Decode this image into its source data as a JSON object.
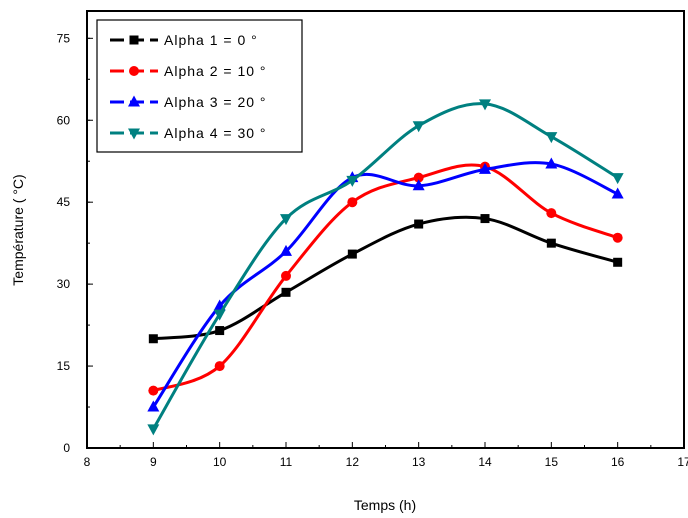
{
  "chart_data": {
    "type": "line",
    "title": "",
    "xlabel": "Temps (h)",
    "ylabel": "Température ( °C)",
    "xlim": [
      8,
      17
    ],
    "ylim": [
      0,
      80
    ],
    "x_ticks": [
      8,
      9,
      10,
      11,
      12,
      13,
      14,
      15,
      16,
      17
    ],
    "y_ticks": [
      0,
      15,
      30,
      45,
      60,
      75
    ],
    "x": [
      9,
      10,
      11,
      12,
      13,
      14,
      15,
      16
    ],
    "legend_position": "top-left",
    "series": [
      {
        "name": "Alpha 1 = 0 °",
        "color": "#000000",
        "marker": "square",
        "values": [
          20,
          21.5,
          28.5,
          35.5,
          41,
          42,
          37.5,
          34
        ]
      },
      {
        "name": "Alpha 2 = 10 °",
        "color": "#ff0000",
        "marker": "circle",
        "values": [
          10.5,
          15,
          31.5,
          45,
          49.5,
          51.5,
          43,
          38.5
        ]
      },
      {
        "name": "Alpha 3 = 20 °",
        "color": "#0000ff",
        "marker": "triangle-up",
        "values": [
          7.5,
          26,
          36,
          49.5,
          48,
          51,
          52,
          46.5
        ]
      },
      {
        "name": "Alpha 4 = 30 °",
        "color": "#008080",
        "marker": "triangle-down",
        "values": [
          3.5,
          24.5,
          42,
          49,
          59,
          63,
          57,
          49.5
        ]
      }
    ]
  }
}
